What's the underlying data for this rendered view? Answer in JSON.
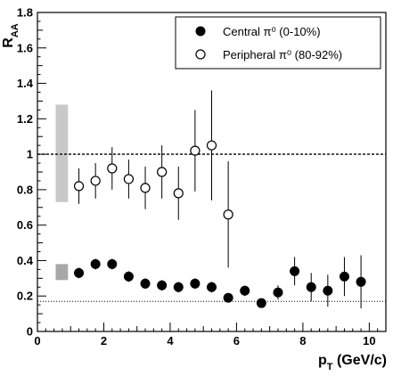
{
  "chart_data": {
    "type": "scatter",
    "xlabel": "p",
    "xlabel_sub": "T",
    "xlabel_unit": " (GeV/c)",
    "ylabel": "R",
    "ylabel_sub": "AA",
    "xlim": [
      0,
      10.5
    ],
    "ylim": [
      0,
      1.8
    ],
    "xticks": [
      0,
      2,
      4,
      6,
      8,
      10
    ],
    "xtick_labels": [
      "0",
      "2",
      "4",
      "6",
      "8",
      "10"
    ],
    "yticks": [
      0,
      0.2,
      0.4,
      0.6,
      0.8,
      1,
      1.2,
      1.4,
      1.6,
      1.8
    ],
    "ytick_labels": [
      "0",
      "0.2",
      "0.4",
      "0.6",
      "0.8",
      "1",
      "1.2",
      "1.4",
      "1.6",
      "1.8"
    ],
    "legend_position": "top-right",
    "reference_lines": [
      {
        "y": 1.0,
        "style": "dashed"
      },
      {
        "y": 0.17,
        "style": "dotted"
      }
    ],
    "systematic_boxes": [
      {
        "x0": 0.55,
        "x1": 0.92,
        "y0": 0.73,
        "y1": 1.28,
        "color": "#c8c8c8"
      },
      {
        "x0": 0.55,
        "x1": 0.92,
        "y0": 0.29,
        "y1": 0.38,
        "color": "#a8a8a8"
      }
    ],
    "series": [
      {
        "name": "Central π⁰ (0-10%)",
        "marker": "filled-circle",
        "x": [
          1.25,
          1.75,
          2.25,
          2.75,
          3.25,
          3.75,
          4.25,
          4.75,
          5.25,
          5.75,
          6.25,
          6.75,
          7.25,
          7.75,
          8.25,
          8.75,
          9.25,
          9.75
        ],
        "y": [
          0.33,
          0.38,
          0.38,
          0.31,
          0.27,
          0.26,
          0.25,
          0.27,
          0.25,
          0.19,
          0.23,
          0.16,
          0.22,
          0.34,
          0.25,
          0.23,
          0.31,
          0.28
        ],
        "err": [
          0.03,
          0.03,
          0.03,
          0.03,
          0.03,
          0.03,
          0.03,
          0.03,
          0.03,
          0.025,
          0.03,
          0.025,
          0.04,
          0.08,
          0.08,
          0.09,
          0.11,
          0.15
        ]
      },
      {
        "name": "Peripheral π⁰ (80-92%)",
        "marker": "open-circle",
        "x": [
          1.25,
          1.75,
          2.25,
          2.75,
          3.25,
          3.75,
          4.25,
          4.75,
          5.25,
          5.75
        ],
        "y": [
          0.82,
          0.85,
          0.92,
          0.86,
          0.81,
          0.9,
          0.78,
          1.02,
          1.05,
          0.66
        ],
        "err": [
          0.1,
          0.1,
          0.12,
          0.11,
          0.12,
          0.15,
          0.15,
          0.23,
          0.31,
          0.3
        ]
      }
    ]
  }
}
